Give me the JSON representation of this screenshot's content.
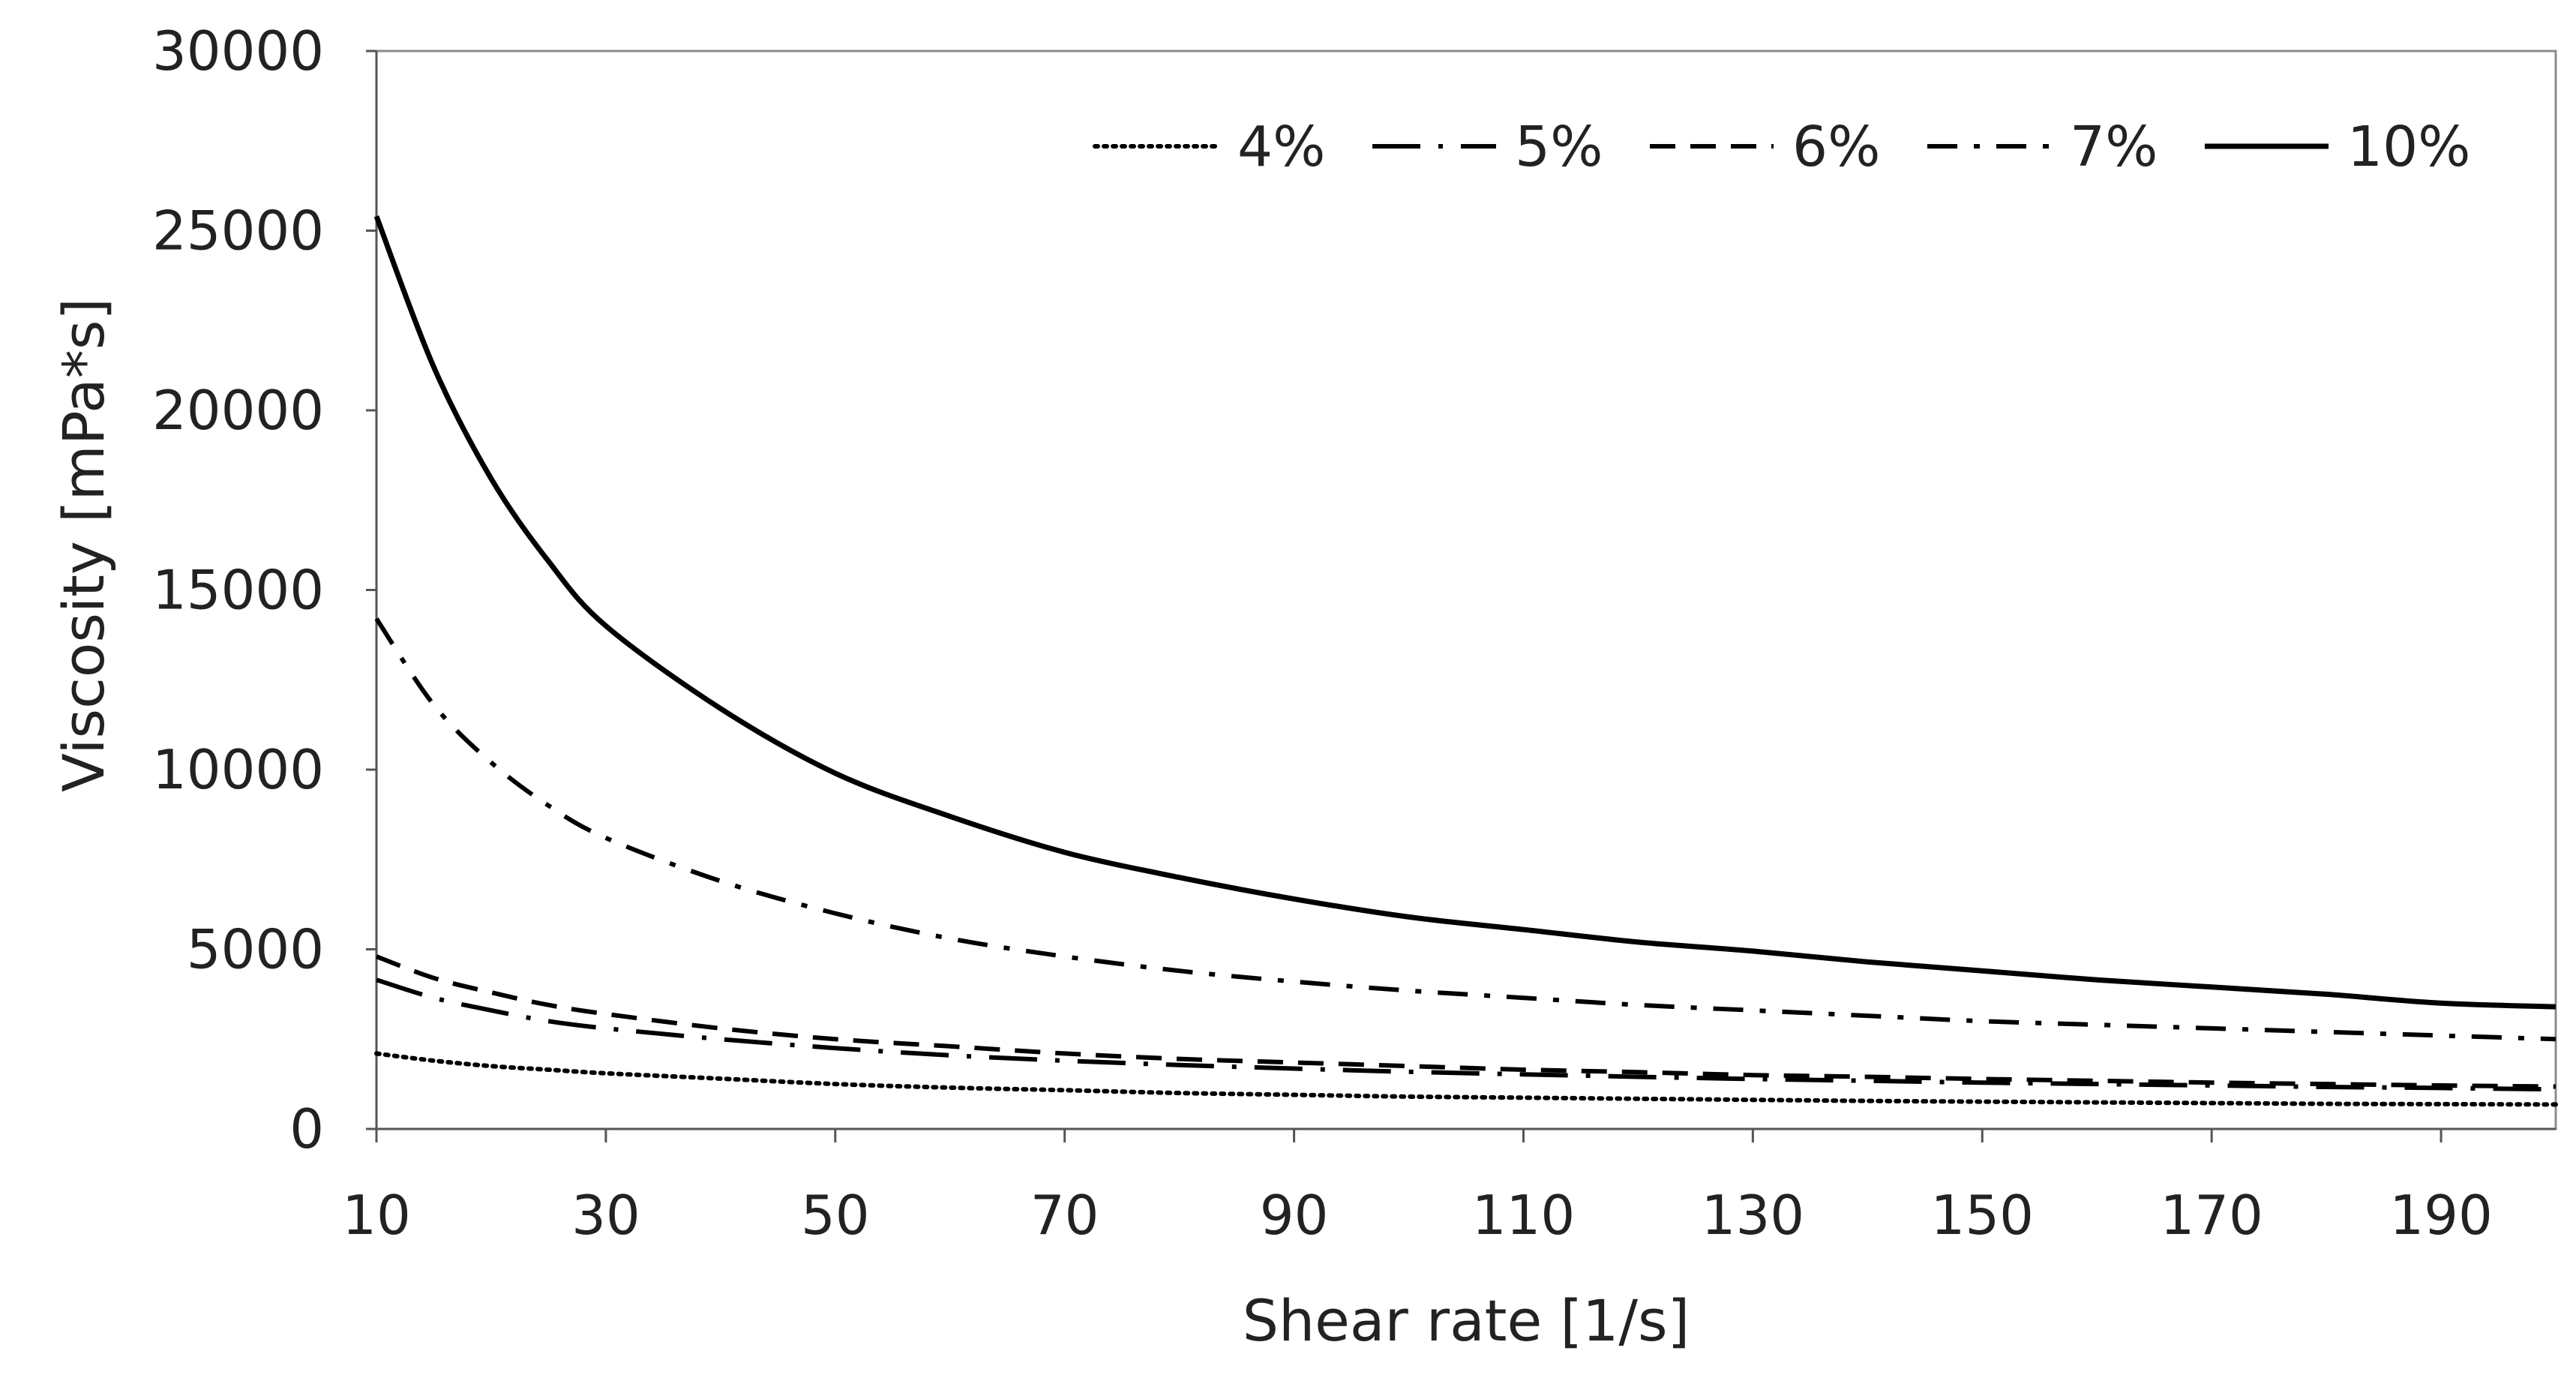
{
  "chart_data": {
    "type": "line",
    "title": "",
    "xlabel": "Shear rate [1/s]",
    "ylabel": "Viscosity [mPa*s]",
    "xlim": [
      10,
      200
    ],
    "ylim": [
      0,
      30000
    ],
    "xticks": [
      10,
      30,
      50,
      70,
      90,
      110,
      130,
      150,
      170,
      190
    ],
    "yticks": [
      0,
      5000,
      10000,
      15000,
      20000,
      25000,
      30000
    ],
    "grid": false,
    "legend_position": "top-right",
    "x": [
      10,
      15,
      20,
      25,
      30,
      40,
      50,
      60,
      70,
      80,
      90,
      100,
      110,
      120,
      130,
      140,
      150,
      160,
      170,
      180,
      190,
      200
    ],
    "series": [
      {
        "name": "4%",
        "style": "dotted",
        "values": [
          2100,
          1900,
          1750,
          1650,
          1550,
          1400,
          1250,
          1150,
          1080,
          1000,
          950,
          900,
          870,
          840,
          810,
          780,
          760,
          740,
          720,
          700,
          690,
          680
        ]
      },
      {
        "name": "5%",
        "style": "long-dash-dot",
        "values": [
          4150,
          3650,
          3300,
          3000,
          2800,
          2500,
          2250,
          2050,
          1900,
          1780,
          1680,
          1590,
          1520,
          1450,
          1390,
          1340,
          1290,
          1250,
          1210,
          1170,
          1140,
          1100
        ]
      },
      {
        "name": "6%",
        "style": "dashed",
        "values": [
          4800,
          4200,
          3800,
          3450,
          3200,
          2800,
          2500,
          2300,
          2100,
          1950,
          1850,
          1750,
          1650,
          1580,
          1500,
          1450,
          1390,
          1340,
          1290,
          1250,
          1210,
          1180
        ]
      },
      {
        "name": "7%",
        "style": "dash-dot",
        "values": [
          14200,
          11800,
          10200,
          9000,
          8100,
          6900,
          6000,
          5300,
          4800,
          4400,
          4100,
          3850,
          3650,
          3450,
          3300,
          3150,
          3000,
          2900,
          2800,
          2700,
          2600,
          2500
        ]
      },
      {
        "name": "10%",
        "style": "solid",
        "values": [
          25400,
          21200,
          18100,
          15800,
          14000,
          11700,
          9900,
          8700,
          7700,
          7000,
          6400,
          5900,
          5550,
          5200,
          4950,
          4650,
          4400,
          4150,
          3950,
          3750,
          3500,
          3400
        ]
      }
    ]
  }
}
